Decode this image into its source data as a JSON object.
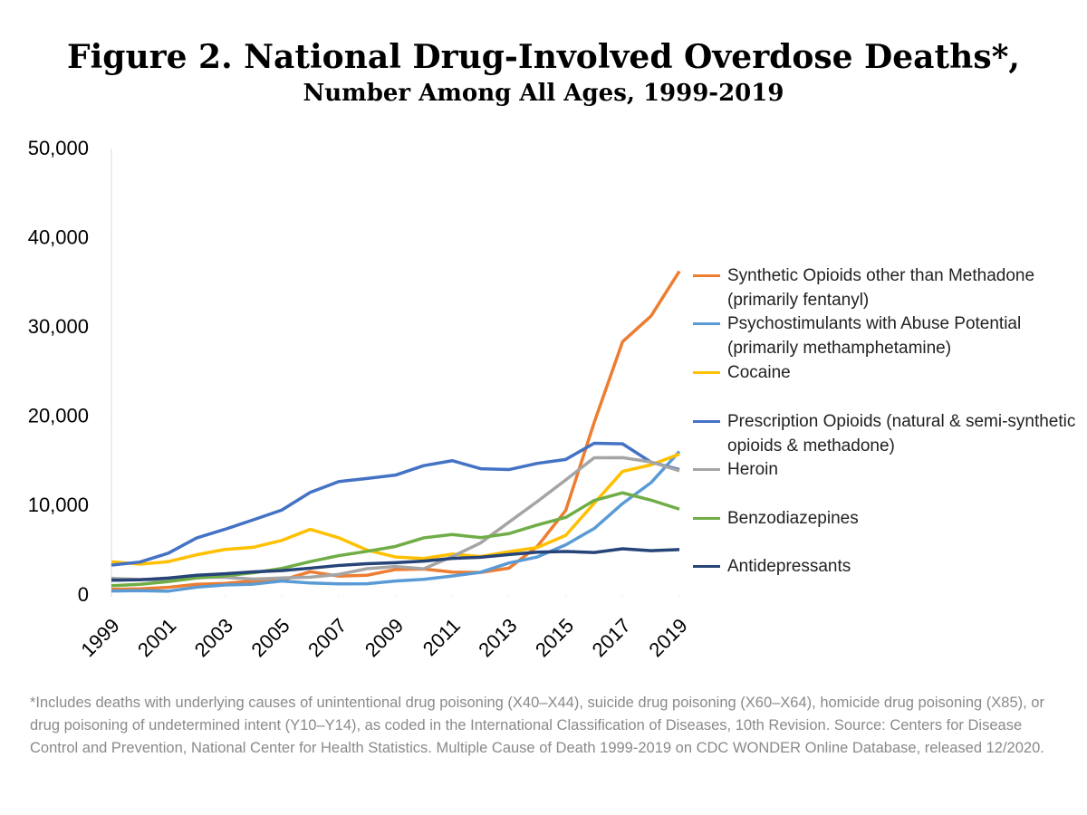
{
  "chart_data": {
    "type": "line",
    "title": "Figure 2. National Drug-Involved Overdose Deaths*,",
    "subtitle": "Number Among All Ages, 1999-2019",
    "x": [
      1999,
      2000,
      2001,
      2002,
      2003,
      2004,
      2005,
      2006,
      2007,
      2008,
      2009,
      2010,
      2011,
      2012,
      2013,
      2014,
      2015,
      2016,
      2017,
      2018,
      2019
    ],
    "xlim": [
      1999,
      2019
    ],
    "xticks": [
      1999,
      2001,
      2003,
      2005,
      2007,
      2009,
      2011,
      2013,
      2015,
      2017,
      2019
    ],
    "ylim": [
      0,
      50000
    ],
    "yticks": [
      0,
      {
        "value": 10000,
        "label": "10,000"
      },
      {
        "value": 20000,
        "label": "20,000"
      },
      {
        "value": 30000,
        "label": "30,000"
      },
      {
        "value": 40000,
        "label": "40,000"
      },
      {
        "value": 50000,
        "label": "50,000"
      }
    ],
    "grid": false,
    "legend": "right",
    "series": [
      {
        "name": "Synthetic Opioids other than Methadone (primarily fentanyl)",
        "color": "#ED7D31",
        "values": [
          730,
          782,
          957,
          1295,
          1400,
          1664,
          1742,
          2707,
          2213,
          2306,
          2946,
          3007,
          2666,
          2628,
          3105,
          5544,
          9580,
          19413,
          28466,
          31335,
          36359
        ]
      },
      {
        "name": "Psychostimulants with Abuse Potential (primarily methamphetamine)",
        "color": "#5B9BD5",
        "values": [
          547,
          578,
          525,
          970,
          1217,
          1312,
          1659,
          1439,
          1348,
          1351,
          1656,
          1849,
          2223,
          2641,
          3685,
          4358,
          5716,
          7542,
          10333,
          12676,
          16167
        ]
      },
      {
        "name": "Cocaine",
        "color": "#FFC000",
        "values": [
          3822,
          3544,
          3833,
          4599,
          5199,
          5443,
          6208,
          7448,
          6512,
          5129,
          4350,
          4183,
          4681,
          4404,
          4944,
          5415,
          6784,
          10375,
          13942,
          14666,
          15883
        ]
      },
      {
        "name": "Prescription Opioids (natural & semi-synthetic opioids & methadone)",
        "color": "#4472C4",
        "values": [
          3442,
          3785,
          4770,
          6483,
          7456,
          8517,
          9612,
          11589,
          12796,
          13149,
          13523,
          14583,
          15140,
          14240,
          14145,
          14838,
          15281,
          17087,
          17029,
          14975,
          14139
        ]
      },
      {
        "name": "Heroin",
        "color": "#A5A5A5",
        "values": [
          1960,
          1842,
          1779,
          2089,
          2080,
          1878,
          2009,
          2088,
          2399,
          3041,
          3278,
          3036,
          4397,
          5925,
          8257,
          10574,
          12989,
          15469,
          15482,
          14996,
          14019
        ]
      },
      {
        "name": "Benzodiazepines",
        "color": "#70AD47",
        "values": [
          1135,
          1298,
          1594,
          2003,
          2248,
          2585,
          3071,
          3835,
          4502,
          4988,
          5531,
          6497,
          6872,
          6524,
          6973,
          7945,
          8791,
          10684,
          11537,
          10724,
          9711
        ]
      },
      {
        "name": "Antidepressants",
        "color": "#264478",
        "values": [
          1749,
          1802,
          1986,
          2303,
          2470,
          2691,
          2822,
          3100,
          3404,
          3595,
          3715,
          3889,
          4198,
          4328,
          4628,
          4893,
          4970,
          4858,
          5269,
          5064,
          5184
        ]
      }
    ],
    "footnote": "*Includes deaths with underlying causes of unintentional drug poisoning (X40–X44), suicide drug poisoning (X60–X64), homicide drug poisoning (X85), or drug poisoning of undetermined intent (Y10–Y14), as coded in the International Classification of Diseases, 10th Revision. Source: Centers for Disease Control and Prevention, National Center for Health Statistics. Multiple Cause of Death 1999-2019 on CDC WONDER Online Database, released 12/2020."
  }
}
